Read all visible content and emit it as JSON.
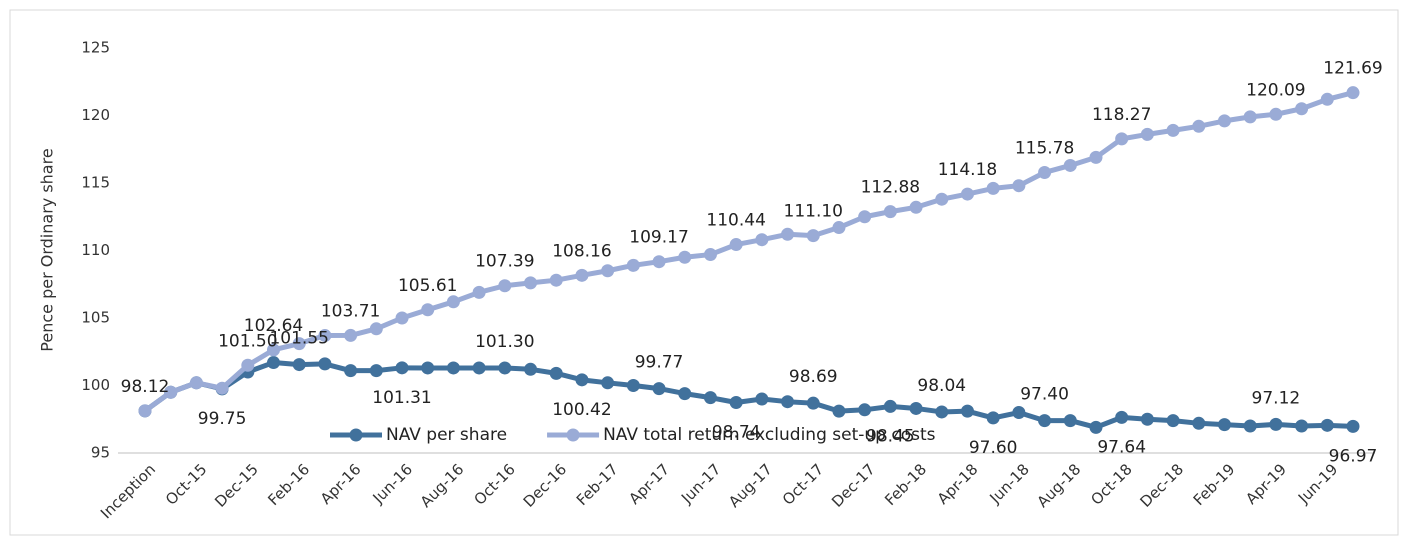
{
  "chart_data": {
    "type": "line",
    "y_label": "Pence per Ordinary share",
    "categories": [
      "Inception",
      null,
      "Oct-15",
      null,
      "Dec-15",
      null,
      "Feb-16",
      null,
      "Apr-16",
      null,
      "Jun-16",
      null,
      "Aug-16",
      null,
      "Oct-16",
      null,
      "Dec-16",
      null,
      "Feb-17",
      null,
      "Apr-17",
      null,
      "Jun-17",
      null,
      "Aug-17",
      null,
      "Oct-17",
      null,
      "Dec-17",
      null,
      "Feb-18",
      null,
      "Apr-18",
      null,
      "Jun-18",
      null,
      "Aug-18",
      null,
      "Oct-18",
      null,
      "Dec-18",
      null,
      "Feb-19",
      null,
      "Apr-19",
      null,
      "Jun-19",
      null
    ],
    "series": [
      {
        "name": "NAV per share",
        "color": "#41719c",
        "values": [
          98.12,
          99.5,
          100.2,
          99.75,
          101.0,
          101.7,
          101.55,
          101.6,
          101.1,
          101.1,
          101.31,
          101.3,
          101.3,
          101.3,
          101.3,
          101.2,
          100.9,
          100.42,
          100.2,
          100.0,
          99.77,
          99.4,
          99.1,
          98.74,
          99.0,
          98.8,
          98.69,
          98.1,
          98.2,
          98.45,
          98.3,
          98.04,
          98.1,
          97.6,
          98.0,
          97.4,
          97.4,
          96.9,
          97.64,
          97.5,
          97.4,
          97.2,
          97.1,
          97.0,
          97.12,
          97.0,
          97.05,
          96.97
        ],
        "value_labels": [
          null,
          null,
          null,
          "99.75",
          null,
          null,
          "101.55",
          null,
          null,
          null,
          "101.31",
          null,
          null,
          null,
          "101.30",
          null,
          null,
          "100.42",
          null,
          null,
          "99.77",
          null,
          null,
          "98.74",
          null,
          null,
          "98.69",
          null,
          null,
          "98.45",
          null,
          "98.04",
          null,
          "97.60",
          null,
          "97.40",
          null,
          null,
          "97.64",
          null,
          null,
          null,
          null,
          null,
          "97.12",
          null,
          null,
          "96.97"
        ]
      },
      {
        "name": "NAV total return excluding set-up costs",
        "color": "#9aabd6",
        "values": [
          98.12,
          99.5,
          100.2,
          99.8,
          101.5,
          102.64,
          103.1,
          103.7,
          103.71,
          104.2,
          105.0,
          105.61,
          106.2,
          106.9,
          107.39,
          107.6,
          107.8,
          108.16,
          108.5,
          108.9,
          109.17,
          109.5,
          109.7,
          110.44,
          110.8,
          111.2,
          111.1,
          111.7,
          112.5,
          112.88,
          113.2,
          113.8,
          114.18,
          114.6,
          114.8,
          115.78,
          116.3,
          116.9,
          118.27,
          118.6,
          118.9,
          119.2,
          119.6,
          119.9,
          120.09,
          120.5,
          121.2,
          121.69
        ],
        "value_labels": [
          "98.12",
          null,
          null,
          null,
          "101.50",
          "102.64",
          null,
          null,
          "103.71",
          null,
          null,
          "105.61",
          null,
          null,
          "107.39",
          null,
          null,
          "108.16",
          null,
          null,
          "109.17",
          null,
          null,
          "110.44",
          null,
          null,
          "111.10",
          null,
          null,
          "112.88",
          null,
          null,
          "114.18",
          null,
          null,
          "115.78",
          null,
          null,
          "118.27",
          null,
          null,
          null,
          null,
          null,
          "120.09",
          null,
          null,
          "121.69"
        ]
      }
    ],
    "ylim": [
      95,
      125
    ],
    "yticks": [
      95,
      100,
      105,
      110,
      115,
      120,
      125
    ],
    "grid": false,
    "legend": "bottom"
  }
}
